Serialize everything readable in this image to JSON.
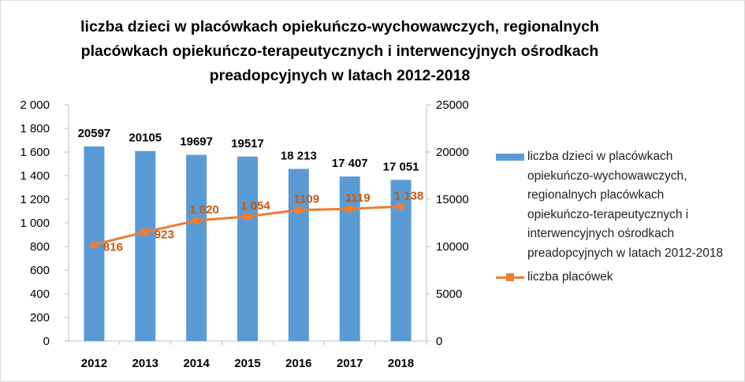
{
  "chart_data": {
    "type": "bar",
    "title": "liczba dzieci w placówkach opiekuńczo-wychowawczych, regionalnych placówkach opiekuńczo-terapeutycznych i interwencyjnych ośrodkach preadopcyjnych w latach 2012-2018",
    "categories": [
      "2012",
      "2013",
      "2014",
      "2015",
      "2016",
      "2017",
      "2018"
    ],
    "series": [
      {
        "name": "liczba dzieci w placówkach opiekuńczo-wychowawczych, regionalnych placówkach opiekuńczo-terapeutycznych i interwencyjnych ośrodkach preadopcyjnych w latach 2012-2018",
        "type": "bar",
        "axis": "right",
        "values": [
          20597,
          20105,
          19697,
          19517,
          18213,
          17407,
          17051
        ],
        "data_labels": [
          "20597",
          "20105",
          "19697",
          "19517",
          "18 213",
          "17 407",
          "17 051"
        ],
        "color": "#5b9bd5"
      },
      {
        "name": "liczba placówek",
        "type": "line",
        "axis": "left",
        "values": [
          816,
          923,
          1020,
          1054,
          1109,
          1119,
          1138
        ],
        "data_labels": [
          "816",
          "923",
          "1 020",
          "1 054",
          "1109",
          "1119",
          "1 138"
        ],
        "color": "#ed7d31"
      }
    ],
    "y_left": {
      "ylim": [
        0,
        2000
      ],
      "tick_labels": [
        "0",
        "200",
        "400",
        "600",
        "800",
        "1 000",
        "1 200",
        "1 400",
        "1 600",
        "1 800",
        "2 000"
      ]
    },
    "y_right": {
      "ylim": [
        0,
        25000
      ],
      "tick_labels": [
        "0",
        "5000",
        "10000",
        "15000",
        "20000",
        "25000"
      ]
    },
    "grid": false,
    "legend_position": "right"
  }
}
